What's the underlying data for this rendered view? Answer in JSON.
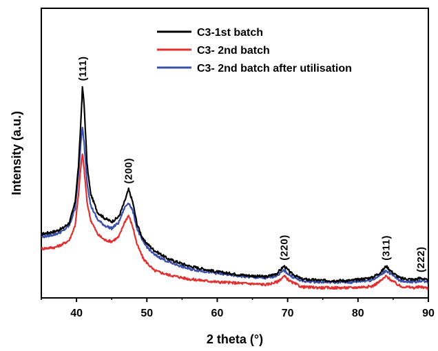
{
  "chart_data": {
    "type": "line",
    "xlabel": "2 theta (°)",
    "ylabel": "Intensity (a.u.)",
    "xlim": [
      35,
      90
    ],
    "ylim": [
      0,
      100
    ],
    "x_ticks": [
      40,
      50,
      60,
      70,
      80,
      90
    ],
    "x_tick_labels": [
      "40",
      "50",
      "60",
      "70",
      "80",
      "90"
    ],
    "y_ticks_shown": false,
    "legend_position": "top-right",
    "series": [
      {
        "name": "C3-1st batch",
        "color": "#000000",
        "points": [
          [
            35,
            22
          ],
          [
            37,
            23
          ],
          [
            38,
            24
          ],
          [
            39,
            26
          ],
          [
            39.8,
            33
          ],
          [
            40.3,
            46
          ],
          [
            40.6,
            60
          ],
          [
            40.85,
            73
          ],
          [
            41.1,
            66
          ],
          [
            41.5,
            46
          ],
          [
            42,
            36
          ],
          [
            43,
            29.5
          ],
          [
            44,
            27.5
          ],
          [
            45,
            26.3
          ],
          [
            46,
            28
          ],
          [
            46.8,
            33
          ],
          [
            47.4,
            37.5
          ],
          [
            48,
            33
          ],
          [
            48.6,
            25.5
          ],
          [
            49.5,
            20
          ],
          [
            51,
            16.5
          ],
          [
            53,
            13.5
          ],
          [
            56,
            11
          ],
          [
            60,
            9
          ],
          [
            64,
            7.8
          ],
          [
            67,
            7.3
          ],
          [
            68.5,
            8.5
          ],
          [
            69.5,
            11
          ],
          [
            70.5,
            8.5
          ],
          [
            72,
            6.5
          ],
          [
            75,
            6
          ],
          [
            79,
            6
          ],
          [
            82,
            7
          ],
          [
            83.3,
            9
          ],
          [
            84,
            11
          ],
          [
            84.8,
            9
          ],
          [
            86,
            6.8
          ],
          [
            88,
            6.3
          ],
          [
            88.9,
            6.9
          ],
          [
            89.5,
            6.4
          ],
          [
            90,
            5.8
          ]
        ]
      },
      {
        "name": "C3- 2nd batch",
        "color": "#e03030",
        "points": [
          [
            35,
            17
          ],
          [
            37,
            17.5
          ],
          [
            38,
            18.5
          ],
          [
            39,
            20
          ],
          [
            39.8,
            25
          ],
          [
            40.3,
            36
          ],
          [
            40.6,
            45
          ],
          [
            40.85,
            50
          ],
          [
            41.1,
            44
          ],
          [
            41.5,
            33
          ],
          [
            42,
            27
          ],
          [
            43,
            22
          ],
          [
            44,
            20
          ],
          [
            45,
            19.5
          ],
          [
            46,
            21
          ],
          [
            46.8,
            26
          ],
          [
            47.4,
            28.5
          ],
          [
            48,
            24.5
          ],
          [
            48.6,
            18.5
          ],
          [
            49.5,
            13.5
          ],
          [
            51,
            9.5
          ],
          [
            53,
            8
          ],
          [
            56,
            6.5
          ],
          [
            60,
            5.5
          ],
          [
            64,
            5
          ],
          [
            67,
            4.6
          ],
          [
            68.5,
            5.5
          ],
          [
            69.5,
            7.5
          ],
          [
            70.5,
            5.5
          ],
          [
            72,
            3.8
          ],
          [
            75,
            3.5
          ],
          [
            79,
            3.5
          ],
          [
            82,
            4
          ],
          [
            83.3,
            6
          ],
          [
            84,
            7.5
          ],
          [
            84.8,
            6
          ],
          [
            86,
            4
          ],
          [
            88,
            3.5
          ],
          [
            88.9,
            3.8
          ],
          [
            89.5,
            3.6
          ],
          [
            90,
            3.2
          ]
        ]
      },
      {
        "name": "C3- 2nd batch after utilisation",
        "color": "#3a4fa8",
        "points": [
          [
            35,
            21
          ],
          [
            37,
            22
          ],
          [
            38,
            23
          ],
          [
            39,
            25
          ],
          [
            39.8,
            31
          ],
          [
            40.3,
            43
          ],
          [
            40.6,
            53
          ],
          [
            40.85,
            59
          ],
          [
            41.1,
            53
          ],
          [
            41.5,
            40
          ],
          [
            42,
            32
          ],
          [
            43,
            27
          ],
          [
            44,
            25
          ],
          [
            45,
            24
          ],
          [
            46,
            26
          ],
          [
            46.8,
            31
          ],
          [
            47.4,
            33
          ],
          [
            48,
            30
          ],
          [
            48.6,
            24
          ],
          [
            49.5,
            19
          ],
          [
            51,
            15
          ],
          [
            53,
            12.5
          ],
          [
            56,
            10
          ],
          [
            60,
            8.5
          ],
          [
            64,
            7.3
          ],
          [
            67,
            6.8
          ],
          [
            68.5,
            7.8
          ],
          [
            69.5,
            9.5
          ],
          [
            70.5,
            7.5
          ],
          [
            72,
            5.8
          ],
          [
            75,
            5.5
          ],
          [
            79,
            5.4
          ],
          [
            82,
            6.2
          ],
          [
            83.3,
            8
          ],
          [
            84,
            9.5
          ],
          [
            84.8,
            8
          ],
          [
            86,
            5.9
          ],
          [
            88,
            5.5
          ],
          [
            88.9,
            6
          ],
          [
            89.5,
            5.7
          ],
          [
            90,
            5.2
          ]
        ]
      }
    ],
    "annotations": [
      {
        "text": "(111)",
        "x": 40.85,
        "y": 73
      },
      {
        "text": "(200)",
        "x": 47.4,
        "y": 37.5
      },
      {
        "text": "(220)",
        "x": 69.5,
        "y": 11
      },
      {
        "text": "(311)",
        "x": 84,
        "y": 11
      },
      {
        "text": "(222)",
        "x": 88.9,
        "y": 6.9
      }
    ]
  }
}
